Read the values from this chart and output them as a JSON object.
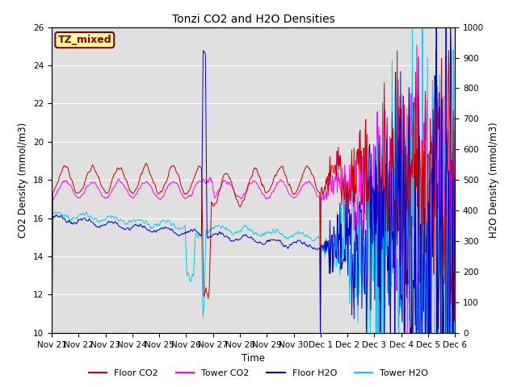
{
  "title": "Tonzi CO2 and H2O Densities",
  "xlabel": "Time",
  "ylabel_left": "CO2 Density (mmol/m3)",
  "ylabel_right": "H2O Density (mmol/m3)",
  "ylim_left": [
    10,
    26
  ],
  "ylim_right": [
    0,
    1000
  ],
  "yticks_left": [
    10,
    12,
    14,
    16,
    18,
    20,
    22,
    24,
    26
  ],
  "yticks_right": [
    0,
    100,
    200,
    300,
    400,
    500,
    600,
    700,
    800,
    900,
    1000
  ],
  "xtick_labels": [
    "Nov 21",
    "Nov 22",
    "Nov 23",
    "Nov 24",
    "Nov 25",
    "Nov 26",
    "Nov 27",
    "Nov 28",
    "Nov 29",
    "Nov 30",
    "Dec 1",
    "Dec 2",
    "Dec 3",
    "Dec 4",
    "Dec 5",
    "Dec 6"
  ],
  "annotation_text": "TZ_mixed",
  "annotation_color": "#880000",
  "annotation_bg": "#ffff99",
  "legend_labels": [
    "Floor CO2",
    "Tower CO2",
    "Floor H2O",
    "Tower H2O"
  ],
  "legend_colors": [
    "#cc0000",
    "#ff00ff",
    "#0000cc",
    "#00ccff"
  ],
  "bg_color": "#e0e0e0",
  "line_colors": {
    "floor_co2": "#cc0000",
    "tower_co2": "#ff00ff",
    "floor_h2o": "#0000cc",
    "tower_h2o": "#00ccff"
  },
  "n_points": 720,
  "figsize": [
    6.4,
    4.8
  ],
  "dpi": 100
}
